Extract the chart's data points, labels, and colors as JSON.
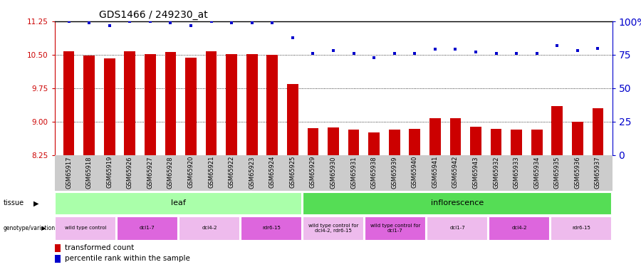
{
  "title": "GDS1466 / 249230_at",
  "samples": [
    "GSM65917",
    "GSM65918",
    "GSM65919",
    "GSM65926",
    "GSM65927",
    "GSM65928",
    "GSM65920",
    "GSM65921",
    "GSM65922",
    "GSM65923",
    "GSM65924",
    "GSM65925",
    "GSM65929",
    "GSM65930",
    "GSM65931",
    "GSM65938",
    "GSM65939",
    "GSM65940",
    "GSM65941",
    "GSM65942",
    "GSM65943",
    "GSM65932",
    "GSM65933",
    "GSM65934",
    "GSM65935",
    "GSM65936",
    "GSM65937"
  ],
  "bar_values": [
    10.57,
    10.49,
    10.42,
    10.57,
    10.51,
    10.56,
    10.43,
    10.57,
    10.51,
    10.51,
    10.5,
    9.85,
    8.85,
    8.87,
    8.82,
    8.76,
    8.82,
    8.84,
    9.08,
    9.07,
    8.88,
    8.84,
    8.82,
    8.82,
    9.35,
    8.99,
    9.3
  ],
  "percentile_values": [
    100,
    99,
    97,
    100,
    100,
    99,
    97,
    100,
    99,
    99,
    99,
    88,
    76,
    78,
    76,
    73,
    76,
    76,
    79,
    79,
    77,
    76,
    76,
    76,
    82,
    78,
    80
  ],
  "ymin": 8.25,
  "ymax": 11.25,
  "yticks": [
    8.25,
    9.0,
    9.75,
    10.5,
    11.25
  ],
  "right_yticks": [
    0,
    25,
    50,
    75,
    100
  ],
  "bar_color": "#cc0000",
  "dot_color": "#0000cc",
  "gridline_color": "#555555",
  "tissue_groups": [
    {
      "label": "leaf",
      "start": 0,
      "end": 11,
      "color": "#aaffaa"
    },
    {
      "label": "inflorescence",
      "start": 12,
      "end": 26,
      "color": "#55dd55"
    }
  ],
  "genotype_groups": [
    {
      "label": "wild type control",
      "start": 0,
      "end": 2,
      "color": "#eebbed"
    },
    {
      "label": "dcl1-7",
      "start": 3,
      "end": 5,
      "color": "#dd66dd"
    },
    {
      "label": "dcl4-2",
      "start": 6,
      "end": 8,
      "color": "#eebbed"
    },
    {
      "label": "rdr6-15",
      "start": 9,
      "end": 11,
      "color": "#dd66dd"
    },
    {
      "label": "wild type control for\ndcl4-2, rdr6-15",
      "start": 12,
      "end": 14,
      "color": "#eebbed"
    },
    {
      "label": "wild type control for\ndcl1-7",
      "start": 15,
      "end": 17,
      "color": "#dd66dd"
    },
    {
      "label": "dcl1-7",
      "start": 18,
      "end": 20,
      "color": "#eebbed"
    },
    {
      "label": "dcl4-2",
      "start": 21,
      "end": 23,
      "color": "#dd66dd"
    },
    {
      "label": "rdr6-15",
      "start": 24,
      "end": 26,
      "color": "#eebbed"
    }
  ],
  "legend_bar_label": "transformed count",
  "legend_dot_label": "percentile rank within the sample",
  "bg_xtick_color": "#cccccc",
  "spine_color": "#000000"
}
